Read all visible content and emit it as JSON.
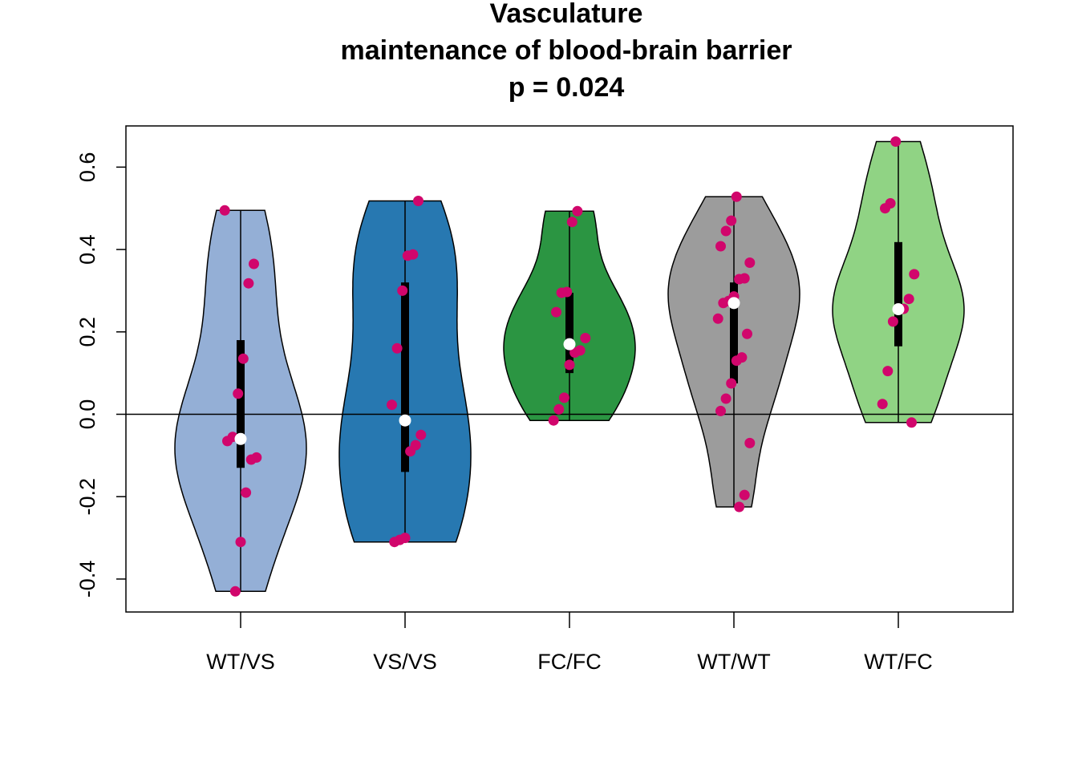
{
  "chart_data": {
    "type": "violin",
    "title": [
      "Vasculature",
      "maintenance of blood-brain barrier",
      "p = 0.024"
    ],
    "xlabel": "",
    "ylabel": "",
    "ylim": [
      -0.48,
      0.7
    ],
    "yticks": [
      -0.4,
      -0.2,
      0.0,
      0.2,
      0.4,
      0.6
    ],
    "ytick_labels": [
      "-0.4",
      "-0.2",
      "0.0",
      "0.2",
      "0.4",
      "0.6"
    ],
    "reference_line": 0.0,
    "point_color": "#d1066c",
    "median_color": "#ffffff",
    "groups": [
      {
        "label": "WT/VS",
        "color": "#94afd6",
        "min": -0.43,
        "max": 0.495,
        "q1": -0.13,
        "q3": 0.18,
        "median": -0.06,
        "points": [
          0.495,
          0.365,
          0.318,
          0.135,
          0.05,
          -0.055,
          -0.065,
          -0.105,
          -0.11,
          -0.19,
          -0.31,
          -0.43
        ]
      },
      {
        "label": "VS/VS",
        "color": "#2778b1",
        "min": -0.31,
        "max": 0.518,
        "q1": -0.14,
        "q3": 0.32,
        "median": -0.015,
        "points": [
          0.518,
          0.388,
          0.385,
          0.3,
          0.16,
          0.023,
          -0.05,
          -0.075,
          -0.09,
          -0.3,
          -0.305,
          -0.31
        ]
      },
      {
        "label": "FC/FC",
        "color": "#2b9542",
        "min": -0.015,
        "max": 0.493,
        "q1": 0.1,
        "q3": 0.295,
        "median": 0.17,
        "points": [
          0.493,
          0.467,
          0.297,
          0.295,
          0.248,
          0.185,
          0.155,
          0.15,
          0.12,
          0.04,
          0.012,
          -0.015
        ]
      },
      {
        "label": "WT/WT",
        "color": "#9c9c9c",
        "min": -0.225,
        "max": 0.528,
        "q1": 0.075,
        "q3": 0.32,
        "median": 0.27,
        "points": [
          0.528,
          0.47,
          0.445,
          0.408,
          0.368,
          0.33,
          0.328,
          0.286,
          0.275,
          0.27,
          0.232,
          0.195,
          0.138,
          0.13,
          0.075,
          0.038,
          0.008,
          -0.07,
          -0.196,
          -0.225
        ]
      },
      {
        "label": "WT/FC",
        "color": "#90d384",
        "min": -0.02,
        "max": 0.662,
        "q1": 0.165,
        "q3": 0.418,
        "median": 0.255,
        "points": [
          0.662,
          0.512,
          0.5,
          0.34,
          0.28,
          0.256,
          0.255,
          0.225,
          0.105,
          0.025,
          -0.02
        ]
      }
    ]
  }
}
